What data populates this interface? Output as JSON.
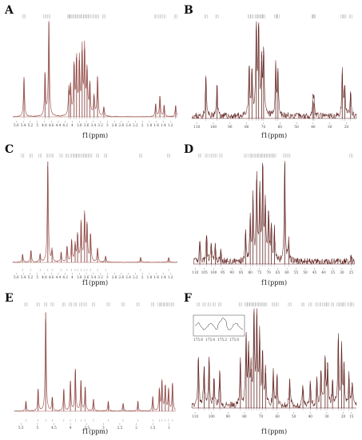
{
  "figure": {
    "title": ""
  },
  "chart_data": [
    {
      "panel": "A",
      "type": "line",
      "xlabel": "f1(ppm)",
      "xaxis": "reversed",
      "x_ticks": [
        5.6,
        5.4,
        5.2,
        5.0,
        4.8,
        4.6,
        4.4,
        4.2,
        4.0,
        3.8,
        3.6,
        3.4,
        3.2,
        3.0,
        2.8,
        2.6,
        2.4,
        2.2,
        2.0,
        1.8,
        1.6,
        1.4,
        1.2
      ],
      "xlim": [
        5.7,
        1.0
      ],
      "ylim": [
        0,
        1.0
      ],
      "series": [
        {
          "style": "filled",
          "peaks": [
            {
              "x": 5.38,
              "y": 0.42
            },
            {
              "x": 4.78,
              "y": 0.46
            },
            {
              "x": 4.67,
              "y": 1.0
            },
            {
              "x": 4.1,
              "y": 0.28
            },
            {
              "x": 4.05,
              "y": 0.32
            },
            {
              "x": 3.95,
              "y": 0.55
            },
            {
              "x": 3.88,
              "y": 0.62
            },
            {
              "x": 3.8,
              "y": 0.6
            },
            {
              "x": 3.72,
              "y": 0.7
            },
            {
              "x": 3.65,
              "y": 0.72
            },
            {
              "x": 3.58,
              "y": 0.5
            },
            {
              "x": 3.5,
              "y": 0.35
            },
            {
              "x": 3.38,
              "y": 0.22
            },
            {
              "x": 3.28,
              "y": 0.42
            },
            {
              "x": 3.1,
              "y": 0.1
            },
            {
              "x": 1.62,
              "y": 0.14
            },
            {
              "x": 1.5,
              "y": 0.22
            },
            {
              "x": 1.38,
              "y": 0.12
            },
            {
              "x": 1.05,
              "y": 0.12
            }
          ]
        }
      ]
    },
    {
      "panel": "B",
      "type": "line",
      "xlabel": "f1(ppm)",
      "xaxis": "reversed",
      "x_ticks": [
        110,
        100,
        90,
        80,
        70,
        60,
        50,
        40,
        30,
        20
      ],
      "xlim": [
        113,
        14
      ],
      "ylim": [
        0,
        1.0
      ],
      "series": [
        {
          "style": "noisy",
          "peaks": [
            {
              "x": 104.5,
              "y": 0.42
            },
            {
              "x": 97.8,
              "y": 0.34
            },
            {
              "x": 78.5,
              "y": 0.52
            },
            {
              "x": 76.8,
              "y": 0.48
            },
            {
              "x": 74.2,
              "y": 0.92
            },
            {
              "x": 72.8,
              "y": 0.95
            },
            {
              "x": 71.0,
              "y": 0.6
            },
            {
              "x": 69.8,
              "y": 0.66
            },
            {
              "x": 62.5,
              "y": 0.52
            },
            {
              "x": 61.2,
              "y": 0.48
            },
            {
              "x": 40.1,
              "y": 0.18
            },
            {
              "x": 39.5,
              "y": 0.16
            },
            {
              "x": 22.5,
              "y": 0.46
            },
            {
              "x": 21.0,
              "y": 0.34
            },
            {
              "x": 17.5,
              "y": 0.26
            }
          ]
        }
      ]
    },
    {
      "panel": "C",
      "type": "line",
      "xlabel": "f1(ppm)",
      "xaxis": "reversed",
      "x_ticks": [
        5.6,
        5.4,
        5.2,
        5.0,
        4.8,
        4.6,
        4.4,
        4.2,
        4.0,
        3.8,
        3.6,
        3.4,
        3.2,
        3.0,
        2.8,
        2.6,
        2.4,
        2.2,
        2.0,
        1.8,
        1.6,
        1.4,
        1.2
      ],
      "xlim": [
        5.7,
        1.0
      ],
      "ylim": [
        0,
        1.0
      ],
      "series": [
        {
          "style": "filled",
          "peaks": [
            {
              "x": 5.42,
              "y": 0.08
            },
            {
              "x": 5.18,
              "y": 0.12
            },
            {
              "x": 4.92,
              "y": 0.08
            },
            {
              "x": 4.7,
              "y": 1.0
            },
            {
              "x": 4.58,
              "y": 0.12
            },
            {
              "x": 4.32,
              "y": 0.1
            },
            {
              "x": 4.15,
              "y": 0.16
            },
            {
              "x": 4.02,
              "y": 0.22
            },
            {
              "x": 3.92,
              "y": 0.18
            },
            {
              "x": 3.85,
              "y": 0.28
            },
            {
              "x": 3.75,
              "y": 0.4
            },
            {
              "x": 3.65,
              "y": 0.48
            },
            {
              "x": 3.58,
              "y": 0.38
            },
            {
              "x": 3.48,
              "y": 0.28
            },
            {
              "x": 3.28,
              "y": 0.14
            },
            {
              "x": 3.05,
              "y": 0.06
            },
            {
              "x": 2.05,
              "y": 0.05
            },
            {
              "x": 1.25,
              "y": 0.05
            }
          ]
        }
      ]
    },
    {
      "panel": "D",
      "type": "line",
      "xlabel": "f1(ppm)",
      "xaxis": "reversed",
      "x_ticks": [
        110,
        105,
        100,
        95,
        90,
        85,
        80,
        75,
        70,
        65,
        60,
        55,
        50,
        45,
        40,
        35,
        30,
        25
      ],
      "xlim": [
        111,
        23
      ],
      "ylim": [
        0,
        1.0
      ],
      "series": [
        {
          "style": "noisy",
          "peaks": [
            {
              "x": 107.5,
              "y": 0.22
            },
            {
              "x": 103.8,
              "y": 0.28
            },
            {
              "x": 101.2,
              "y": 0.18
            },
            {
              "x": 99.0,
              "y": 0.16
            },
            {
              "x": 96.0,
              "y": 0.12
            },
            {
              "x": 82.5,
              "y": 0.3
            },
            {
              "x": 80.0,
              "y": 0.44
            },
            {
              "x": 78.5,
              "y": 0.62
            },
            {
              "x": 76.5,
              "y": 0.82
            },
            {
              "x": 74.8,
              "y": 0.7
            },
            {
              "x": 73.2,
              "y": 0.95
            },
            {
              "x": 71.8,
              "y": 0.58
            },
            {
              "x": 70.0,
              "y": 0.48
            },
            {
              "x": 68.5,
              "y": 0.36
            },
            {
              "x": 66.8,
              "y": 0.3
            },
            {
              "x": 61.2,
              "y": 0.98
            },
            {
              "x": 59.0,
              "y": 0.2
            },
            {
              "x": 25.0,
              "y": 0.08
            }
          ]
        }
      ]
    },
    {
      "panel": "E",
      "type": "line",
      "xlabel": "f1(ppm)",
      "xaxis": "reversed",
      "x_ticks": [
        5.5,
        5.0,
        4.5,
        4.0,
        3.5,
        3.0,
        2.5,
        2.0,
        1.5,
        1.0
      ],
      "xlim": [
        5.7,
        0.8
      ],
      "ylim": [
        0,
        1.0
      ],
      "series": [
        {
          "style": "filled",
          "peaks": [
            {
              "x": 5.35,
              "y": 0.1
            },
            {
              "x": 4.98,
              "y": 0.22
            },
            {
              "x": 4.75,
              "y": 0.98
            },
            {
              "x": 4.55,
              "y": 0.14
            },
            {
              "x": 4.2,
              "y": 0.22
            },
            {
              "x": 4.0,
              "y": 0.3
            },
            {
              "x": 3.85,
              "y": 0.42
            },
            {
              "x": 3.68,
              "y": 0.3
            },
            {
              "x": 3.55,
              "y": 0.24
            },
            {
              "x": 3.3,
              "y": 0.12
            },
            {
              "x": 2.85,
              "y": 0.1
            },
            {
              "x": 2.4,
              "y": 0.08
            },
            {
              "x": 1.95,
              "y": 0.1
            },
            {
              "x": 1.5,
              "y": 0.14
            },
            {
              "x": 1.3,
              "y": 0.22
            },
            {
              "x": 1.22,
              "y": 0.3
            },
            {
              "x": 1.12,
              "y": 0.26
            },
            {
              "x": 1.02,
              "y": 0.22
            },
            {
              "x": 0.9,
              "y": 0.28
            }
          ]
        }
      ]
    },
    {
      "panel": "F",
      "type": "line",
      "xlabel": "f1(ppm)",
      "xaxis": "reversed",
      "x_ticks": [
        110,
        100,
        90,
        80,
        70,
        60,
        50,
        40,
        30,
        20,
        15
      ],
      "xlim": [
        112,
        12
      ],
      "ylim": [
        0,
        1.0
      ],
      "inset_ticks": [
        "175.6",
        "175.4",
        "175.2",
        "175.0"
      ],
      "series": [
        {
          "style": "noisy",
          "peaks": [
            {
              "x": 108.0,
              "y": 0.5
            },
            {
              "x": 104.5,
              "y": 0.42
            },
            {
              "x": 101.5,
              "y": 0.48
            },
            {
              "x": 98.5,
              "y": 0.3
            },
            {
              "x": 95.0,
              "y": 0.36
            },
            {
              "x": 82.5,
              "y": 0.46
            },
            {
              "x": 79.0,
              "y": 0.72
            },
            {
              "x": 77.5,
              "y": 0.58
            },
            {
              "x": 76.0,
              "y": 0.4
            },
            {
              "x": 74.2,
              "y": 0.98
            },
            {
              "x": 72.5,
              "y": 0.95
            },
            {
              "x": 70.8,
              "y": 0.7
            },
            {
              "x": 69.0,
              "y": 0.55
            },
            {
              "x": 67.2,
              "y": 0.36
            },
            {
              "x": 62.5,
              "y": 0.34
            },
            {
              "x": 60.2,
              "y": 0.32
            },
            {
              "x": 52.5,
              "y": 0.3
            },
            {
              "x": 44.5,
              "y": 0.2
            },
            {
              "x": 40.0,
              "y": 0.24
            },
            {
              "x": 36.0,
              "y": 0.28
            },
            {
              "x": 33.5,
              "y": 0.36
            },
            {
              "x": 31.0,
              "y": 0.52
            },
            {
              "x": 29.5,
              "y": 0.4
            },
            {
              "x": 26.5,
              "y": 0.28
            },
            {
              "x": 23.0,
              "y": 0.7
            },
            {
              "x": 21.0,
              "y": 0.6
            },
            {
              "x": 19.5,
              "y": 0.4
            },
            {
              "x": 16.5,
              "y": 0.3
            },
            {
              "x": 14.5,
              "y": 0.22
            }
          ]
        }
      ]
    }
  ],
  "colors": {
    "trace": "#7a2c2a",
    "trace_filled": "#a5635d",
    "noise": "#5e1e1b",
    "annotation": "#8a8a8a"
  }
}
